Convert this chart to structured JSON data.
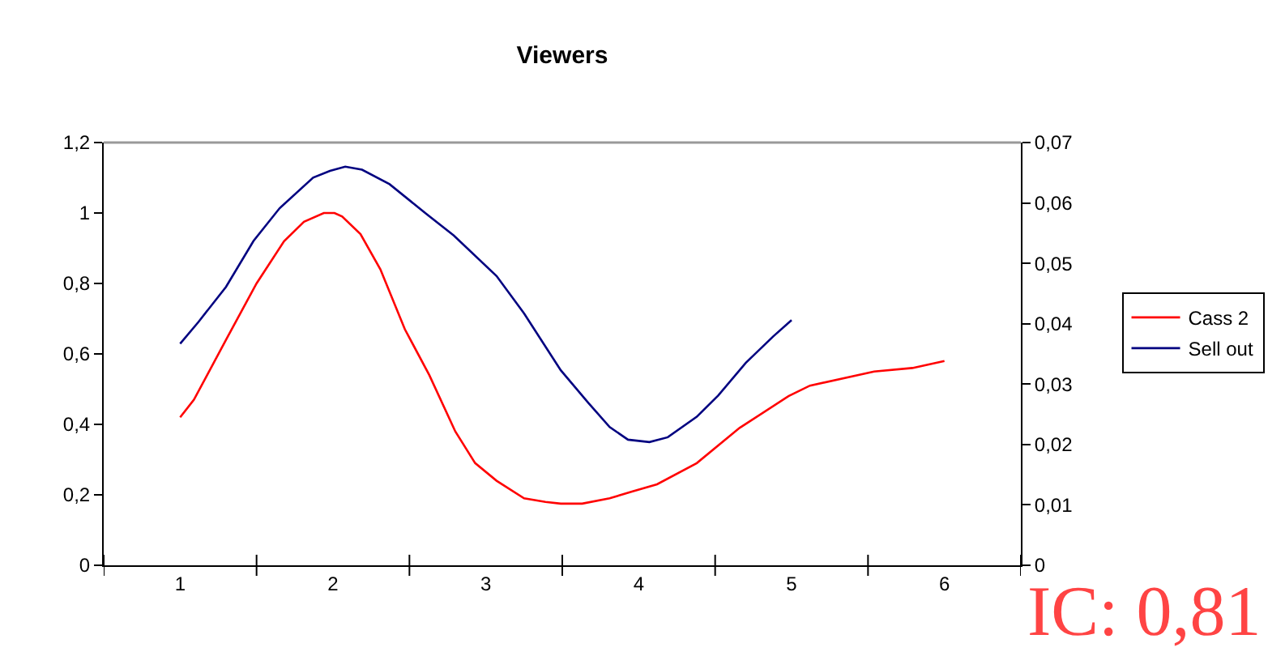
{
  "chart_data": {
    "type": "line",
    "title": "Viewers",
    "xlim": [
      0.5,
      6.5
    ],
    "xticks": [
      {
        "value": 1,
        "label": "1"
      },
      {
        "value": 2,
        "label": "2"
      },
      {
        "value": 3,
        "label": "3"
      },
      {
        "value": 4,
        "label": "4"
      },
      {
        "value": 5,
        "label": "5"
      },
      {
        "value": 6,
        "label": "6"
      },
      {
        "value": 0.5,
        "label": null
      },
      {
        "value": 1.5,
        "label": null
      },
      {
        "value": 2.5,
        "label": null
      },
      {
        "value": 3.5,
        "label": null
      },
      {
        "value": 4.5,
        "label": null
      },
      {
        "value": 5.5,
        "label": null
      },
      {
        "value": 6.5,
        "label": null
      }
    ],
    "ylim": [
      0,
      1.2
    ],
    "yticks": [
      0,
      {
        "value": 0.2,
        "label": "0,2"
      },
      {
        "value": 0.4,
        "label": "0,4"
      },
      {
        "value": 0.6,
        "label": "0,6"
      },
      {
        "value": 0.8,
        "label": "0,8"
      },
      1,
      {
        "value": 1.2,
        "label": "1,2"
      }
    ],
    "y2lim": [
      0,
      0.07
    ],
    "y2ticks": [
      0,
      {
        "value": 0.01,
        "label": "0,01"
      },
      {
        "value": 0.02,
        "label": "0,02"
      },
      {
        "value": 0.03,
        "label": "0,03"
      },
      {
        "value": 0.04,
        "label": "0,04"
      },
      {
        "value": 0.05,
        "label": "0,05"
      },
      {
        "value": 0.06,
        "label": "0,06"
      },
      {
        "value": 0.07,
        "label": "0,07"
      }
    ],
    "legend": "right",
    "marker": "none",
    "line_style": "solid",
    "series": [
      {
        "name": "Cass 2",
        "color": "#ff0000",
        "x": [
          1,
          1.09,
          1.3,
          1.5,
          1.68,
          1.81,
          1.94,
          2.01,
          2.06,
          2.18,
          2.31,
          2.47,
          2.63,
          2.8,
          2.93,
          3.07,
          3.25,
          3.39,
          3.49,
          3.63,
          3.81,
          3.96,
          4.12,
          4.38,
          4.66,
          4.98,
          5.12,
          5.54,
          5.79,
          6
        ],
        "values": [
          0.42,
          0.47,
          0.64,
          0.8,
          0.92,
          0.975,
          1.0,
          1.0,
          0.99,
          0.94,
          0.84,
          0.67,
          0.54,
          0.38,
          0.29,
          0.24,
          0.19,
          0.18,
          0.175,
          0.175,
          0.19,
          0.21,
          0.23,
          0.29,
          0.39,
          0.48,
          0.51,
          0.55,
          0.56,
          0.58
        ]
      },
      {
        "name": "Sell out",
        "color": "#000080",
        "axis": "y2",
        "x": [
          1,
          1.12,
          1.3,
          1.48,
          1.65,
          1.87,
          1.98,
          2.08,
          2.19,
          2.37,
          2.61,
          2.79,
          3.07,
          3.25,
          3.49,
          3.67,
          3.81,
          3.93,
          4.07,
          4.19,
          4.38,
          4.52,
          4.7,
          4.88,
          5
        ],
        "values": [
          0.0367,
          0.0403,
          0.0461,
          0.0537,
          0.0591,
          0.0642,
          0.0653,
          0.066,
          0.0655,
          0.0631,
          0.0582,
          0.0546,
          0.0479,
          0.0417,
          0.0323,
          0.0269,
          0.0229,
          0.0208,
          0.0204,
          0.0212,
          0.0246,
          0.0281,
          0.0335,
          0.0379,
          0.0406
        ]
      }
    ],
    "annotations": [
      "IC: 0,81"
    ]
  }
}
